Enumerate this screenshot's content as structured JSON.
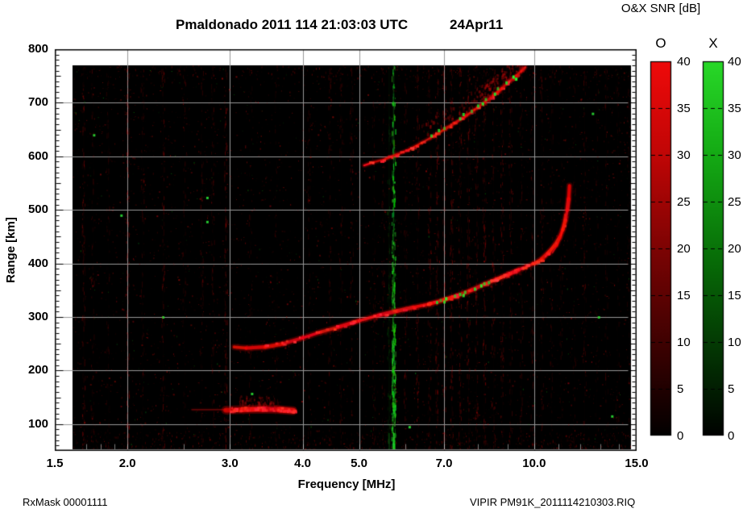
{
  "title": {
    "main": "Pmaldonado 2011 114 21:03:03 UTC",
    "date": "24Apr11"
  },
  "footer": {
    "left": "RxMask 00001111",
    "right": "VIPIR  PM91K_2011114210303.RIQ"
  },
  "chart_data": {
    "type": "heatmap",
    "title": "Pmaldonado 2011 114 21:03:03 UTC 24Apr11",
    "xlabel": "Frequency [MHz]",
    "ylabel": "Range [km]",
    "x_scale": "log",
    "xlim": [
      1.5,
      15
    ],
    "ylim": [
      50,
      800
    ],
    "x_ticks": [
      {
        "v": 1.5,
        "label": "1.5"
      },
      {
        "v": 2.0,
        "label": "2.0"
      },
      {
        "v": 3.0,
        "label": "3.0"
      },
      {
        "v": 4.0,
        "label": "4.0"
      },
      {
        "v": 5.0,
        "label": "5.0"
      },
      {
        "v": 7.0,
        "label": "7.0"
      },
      {
        "v": 10.0,
        "label": "10.0"
      },
      {
        "v": 15.0,
        "label": "15.0"
      }
    ],
    "x_minor_ticks": [
      1.6,
      1.7,
      1.8,
      1.9,
      2.5,
      6.0,
      8.0,
      9.0,
      11.0,
      12.0,
      13.0,
      14.0
    ],
    "y_ticks": [
      {
        "v": 800,
        "label": "800"
      },
      {
        "v": 700,
        "label": "700"
      },
      {
        "v": 600,
        "label": "600"
      },
      {
        "v": 500,
        "label": "500"
      },
      {
        "v": 400,
        "label": "400"
      },
      {
        "v": 300,
        "label": "300"
      },
      {
        "v": 200,
        "label": "200"
      },
      {
        "v": 100,
        "label": "100"
      }
    ],
    "y_minor_step": 10,
    "grid": {
      "x": [
        2,
        3,
        4,
        5,
        7,
        10
      ],
      "y": [
        100,
        200,
        300,
        400,
        500,
        600,
        700
      ],
      "color": "#989898"
    },
    "plot_bg": "#000000",
    "data_extent": {
      "f_mhz": [
        1.61,
        14.85
      ],
      "range_km": [
        53,
        770
      ]
    },
    "colors": {
      "o_mode": "#ee0a0a",
      "x_mode": "#28d828"
    },
    "noise": {
      "seed": 42,
      "red_speckles": 6500,
      "green_speckles": 520,
      "rfi_red_columns": [
        [
          1.68,
          0.45
        ],
        [
          1.74,
          0.3
        ],
        [
          1.85,
          0.25
        ],
        [
          2.0,
          0.5
        ],
        [
          2.12,
          0.3
        ],
        [
          2.3,
          0.35
        ],
        [
          2.5,
          0.25
        ],
        [
          2.68,
          0.3
        ],
        [
          2.8,
          0.3
        ],
        [
          2.95,
          0.45
        ],
        [
          3.25,
          0.25
        ],
        [
          3.6,
          0.2
        ],
        [
          4.1,
          0.25
        ],
        [
          4.45,
          0.3
        ],
        [
          4.65,
          0.3
        ],
        [
          4.85,
          0.3
        ],
        [
          5.3,
          0.25
        ],
        [
          5.5,
          0.3
        ],
        [
          6.0,
          0.3
        ],
        [
          6.3,
          0.35
        ],
        [
          6.6,
          0.4
        ],
        [
          6.8,
          0.45
        ],
        [
          7.0,
          0.4
        ],
        [
          7.2,
          0.45
        ],
        [
          7.45,
          0.4
        ],
        [
          7.7,
          0.45
        ],
        [
          7.95,
          0.4
        ],
        [
          8.2,
          0.45
        ],
        [
          8.5,
          0.35
        ],
        [
          8.8,
          0.4
        ],
        [
          9.1,
          0.35
        ],
        [
          9.5,
          0.3
        ],
        [
          9.9,
          0.3
        ],
        [
          10.3,
          0.3
        ],
        [
          10.7,
          0.25
        ],
        [
          11.1,
          0.25
        ],
        [
          11.7,
          0.2
        ],
        [
          12.2,
          0.3
        ],
        [
          12.8,
          0.2
        ],
        [
          13.3,
          0.25
        ],
        [
          13.9,
          0.2
        ],
        [
          14.5,
          0.2
        ]
      ],
      "rfi_green_columns": [
        [
          5.72,
          0.9
        ],
        [
          5.62,
          0.2
        ]
      ],
      "green_dots": [
        [
          2.74,
          523
        ],
        [
          2.74,
          478
        ],
        [
          3.27,
          157
        ],
        [
          1.95,
          490
        ],
        [
          6.1,
          95
        ],
        [
          12.6,
          680
        ],
        [
          13.6,
          115
        ],
        [
          1.75,
          640
        ],
        [
          12.9,
          300
        ],
        [
          2.3,
          300
        ]
      ]
    },
    "traces": {
      "e_layer_echo": {
        "core": [
          [
            2.95,
            126
          ],
          [
            3.15,
            127
          ],
          [
            3.4,
            128
          ],
          [
            3.65,
            127
          ],
          [
            3.85,
            125
          ]
        ],
        "tail": [
          [
            2.58,
            127
          ],
          [
            2.95,
            127
          ]
        ],
        "haze": {
          "f_range": [
            3.1,
            3.62
          ],
          "km_range": [
            130,
            155
          ]
        }
      },
      "f_layer_o_trace": {
        "points": [
          [
            3.05,
            244
          ],
          [
            3.2,
            242
          ],
          [
            3.45,
            244
          ],
          [
            3.7,
            250
          ],
          [
            4.0,
            261
          ],
          [
            4.3,
            272
          ],
          [
            4.6,
            281
          ],
          [
            5.0,
            293
          ],
          [
            5.4,
            303
          ],
          [
            5.8,
            311
          ],
          [
            6.2,
            318
          ],
          [
            6.6,
            324
          ],
          [
            7.0,
            332
          ],
          [
            7.4,
            340
          ],
          [
            7.8,
            350
          ],
          [
            8.2,
            361
          ],
          [
            8.6,
            370
          ],
          [
            9.0,
            379
          ],
          [
            9.4,
            388
          ],
          [
            9.7,
            394
          ],
          [
            10.0,
            400
          ],
          [
            10.3,
            408
          ],
          [
            10.6,
            421
          ],
          [
            10.85,
            434
          ],
          [
            11.05,
            448
          ],
          [
            11.2,
            463
          ],
          [
            11.32,
            481
          ],
          [
            11.4,
            500
          ],
          [
            11.46,
            520
          ],
          [
            11.5,
            545
          ]
        ],
        "green_flecks": [
          [
            6.9,
            331
          ],
          [
            7.05,
            334
          ],
          [
            7.3,
            339
          ],
          [
            7.45,
            342
          ],
          [
            7.6,
            346
          ],
          [
            7.9,
            352
          ],
          [
            8.1,
            358
          ],
          [
            8.35,
            364
          ],
          [
            7.0,
            328
          ],
          [
            7.55,
            340
          ],
          [
            8.2,
            362
          ],
          [
            6.8,
            327
          ]
        ]
      },
      "f_layer_cusp_branch": [
        [
          10.75,
          420
        ],
        [
          10.95,
          434
        ],
        [
          11.12,
          452
        ],
        [
          11.24,
          472
        ],
        [
          11.3,
          492
        ]
      ],
      "second_hop_trace": {
        "points": [
          [
            5.1,
            583
          ],
          [
            5.3,
            589
          ],
          [
            5.55,
            595
          ],
          [
            5.8,
            603
          ],
          [
            6.1,
            613
          ],
          [
            6.4,
            625
          ],
          [
            6.7,
            637
          ],
          [
            7.0,
            650
          ],
          [
            7.3,
            662
          ],
          [
            7.6,
            674
          ],
          [
            7.9,
            687
          ],
          [
            8.2,
            700
          ],
          [
            8.5,
            713
          ],
          [
            8.8,
            727
          ],
          [
            9.05,
            739
          ],
          [
            9.3,
            750
          ],
          [
            9.5,
            759
          ],
          [
            9.65,
            766
          ]
        ],
        "green_flecks": [
          [
            6.65,
            638
          ],
          [
            6.85,
            648
          ],
          [
            7.0,
            652
          ],
          [
            7.45,
            670
          ],
          [
            7.55,
            678
          ],
          [
            8.15,
            698
          ],
          [
            8.25,
            706
          ],
          [
            8.55,
            716
          ],
          [
            8.65,
            726
          ],
          [
            9.2,
            748
          ],
          [
            9.3,
            744
          ],
          [
            8.95,
            737
          ],
          [
            7.8,
            684
          ],
          [
            8.0,
            694
          ]
        ],
        "spread_above_km": 40
      }
    },
    "colorbar": {
      "title": "O&X SNR [dB]",
      "min": 0,
      "max": 40,
      "tick_step": 5,
      "tick_labels": [
        "40",
        "35",
        "30",
        "25",
        "20",
        "15",
        "10",
        "5",
        "0"
      ],
      "bars": [
        {
          "id": "o",
          "header": "O",
          "color": "#ee0a0a"
        },
        {
          "id": "x",
          "header": "X",
          "color": "#28d828"
        }
      ]
    }
  }
}
